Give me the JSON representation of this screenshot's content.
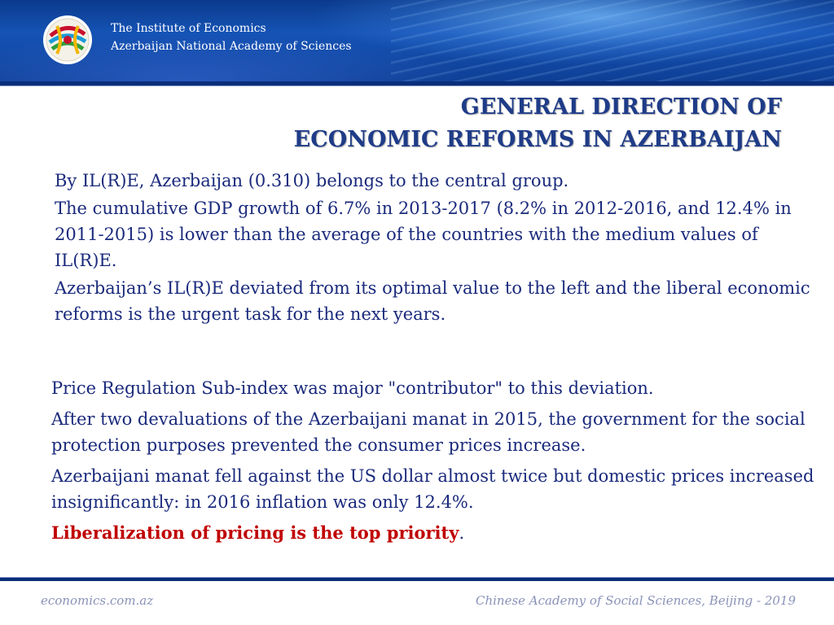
{
  "header": {
    "institute_line1": "The Institute of Economics",
    "institute_line2": "Azerbaijan National Academy of Sciences",
    "logo_icon": "institute-globe-logo",
    "brand_colors": {
      "header_blue": "#1553b5",
      "title_blue": "#1f3c88",
      "text_blue": "#1a2a7c",
      "highlight_red": "#c00000"
    }
  },
  "slide": {
    "title_line1": "GENERAL DIRECTION OF",
    "title_line2": "ECONOMIC REFORMS IN AZERBAIJAN",
    "block1": [
      "By IL(R)E, Azerbaijan (0.310) belongs to the central group.",
      "The cumulative GDP growth of 6.7% in 2013-2017 (8.2% in 2012-2016, and 12.4% in 2011-2015) is lower than the average of the countries with the medium values of IL(R)E.",
      "Azerbaijan’s IL(R)E deviated from its optimal value to the left and the liberal economic reforms is the urgent task for the next years."
    ],
    "block2": [
      "Price Regulation Sub-index was major \"contributor\" to this deviation.",
      "After two devaluations of the Azerbaijani manat in 2015, the government for the social protection purposes prevented the consumer prices increase.",
      "Azerbaijani manat fell against the US dollar almost twice but domestic prices increased insignificantly: in 2016 inflation was only 12.4%."
    ],
    "priority_text": "Liberalization of pricing is the top priority",
    "priority_punct": "."
  },
  "footer": {
    "left": "economics.com.az",
    "right": "Chinese Academy of Social Sciences, Beijing - 2019"
  }
}
